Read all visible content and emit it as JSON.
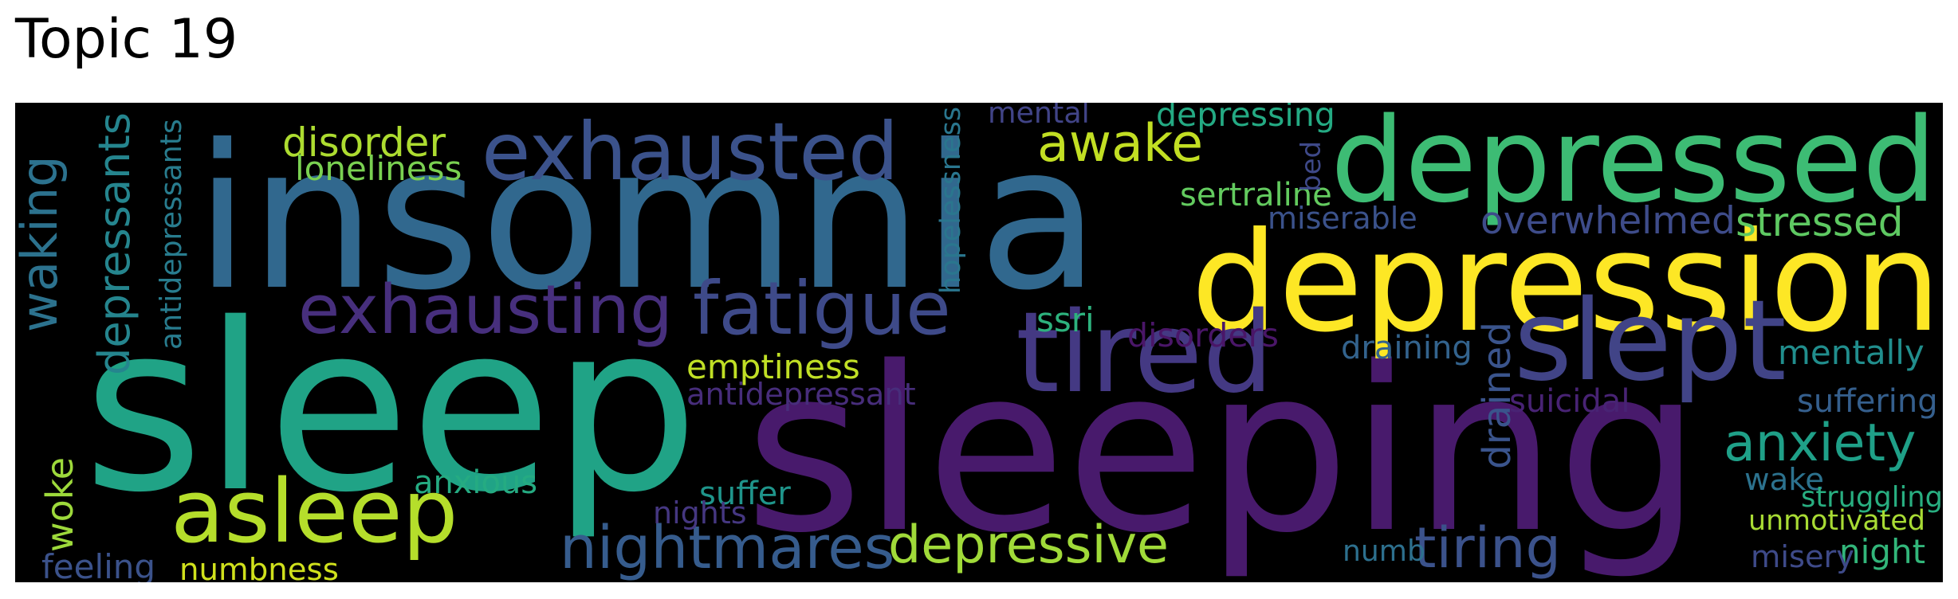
{
  "title": "Topic 19",
  "words": [
    {
      "text": "insomnia",
      "color": "#31688e"
    },
    {
      "text": "sleeping",
      "color": "#481a6c"
    },
    {
      "text": "sleep",
      "color": "#20a386"
    },
    {
      "text": "depression",
      "color": "#fde725"
    },
    {
      "text": "depressed",
      "color": "#3dbc74"
    },
    {
      "text": "tired",
      "color": "#443983"
    },
    {
      "text": "slept",
      "color": "#414487"
    },
    {
      "text": "fatigue",
      "color": "#3e4a89"
    },
    {
      "text": "exhausted",
      "color": "#3b528b"
    },
    {
      "text": "asleep",
      "color": "#b5de2b"
    },
    {
      "text": "exhausting",
      "color": "#472f7d"
    },
    {
      "text": "waking",
      "color": "#2c728e"
    },
    {
      "text": "nightmares",
      "color": "#365c8d"
    },
    {
      "text": "depressive",
      "color": "#a0da39"
    },
    {
      "text": "anxiety",
      "color": "#1fa088"
    },
    {
      "text": "tiring",
      "color": "#3b528b"
    },
    {
      "text": "awake",
      "color": "#c2df23"
    },
    {
      "text": "disorder",
      "color": "#addc30"
    },
    {
      "text": "overwhelmed",
      "color": "#3e4c8a"
    },
    {
      "text": "stressed",
      "color": "#5ec962"
    },
    {
      "text": "depressants",
      "color": "#25858e"
    },
    {
      "text": "drained",
      "color": "#3a548c"
    },
    {
      "text": "antidepressants",
      "color": "#287c8e"
    },
    {
      "text": "hopelessness",
      "color": "#2a768e"
    },
    {
      "text": "loneliness",
      "color": "#7ad151"
    },
    {
      "text": "sertraline",
      "color": "#63cb5f"
    },
    {
      "text": "mental",
      "color": "#414487"
    },
    {
      "text": "depressing",
      "color": "#24aa83"
    },
    {
      "text": "miserable",
      "color": "#3b528b"
    },
    {
      "text": "bed",
      "color": "#3e4989"
    },
    {
      "text": "emptiness",
      "color": "#c0df25"
    },
    {
      "text": "antidepressant",
      "color": "#472d7b"
    },
    {
      "text": "ssri",
      "color": "#2db27d"
    },
    {
      "text": "disorders",
      "color": "#4a1668"
    },
    {
      "text": "draining",
      "color": "#33638d"
    },
    {
      "text": "mentally",
      "color": "#218e8d"
    },
    {
      "text": "suicidal",
      "color": "#482374"
    },
    {
      "text": "suffering",
      "color": "#355f8d"
    },
    {
      "text": "anxious",
      "color": "#25ab82"
    },
    {
      "text": "suffer",
      "color": "#1f958b"
    },
    {
      "text": "nights",
      "color": "#453781"
    },
    {
      "text": "woke",
      "color": "#9dd93b"
    },
    {
      "text": "wake",
      "color": "#2c728e"
    },
    {
      "text": "struggling",
      "color": "#28ae80"
    },
    {
      "text": "unmotivated",
      "color": "#a8db34"
    },
    {
      "text": "numb",
      "color": "#2d708e"
    },
    {
      "text": "night",
      "color": "#32b67a"
    },
    {
      "text": "misery",
      "color": "#3e4a89"
    },
    {
      "text": "feeling",
      "color": "#3b528b"
    },
    {
      "text": "numbness",
      "color": "#d0e11c"
    }
  ]
}
